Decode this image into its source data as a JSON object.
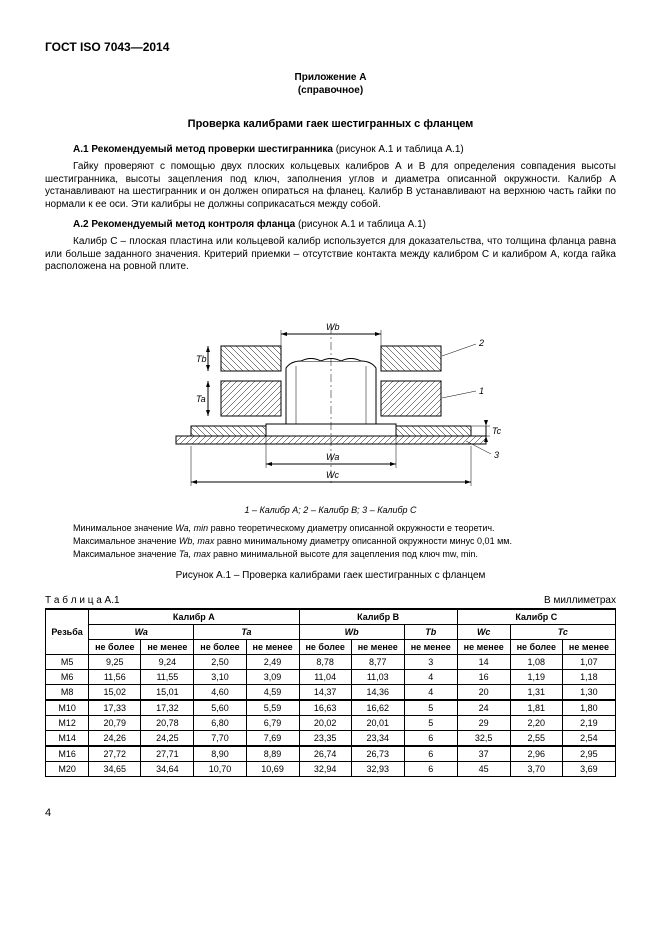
{
  "standard": "ГОСТ ISO 7043—2014",
  "appendix": {
    "title": "Приложение А",
    "subtitle": "(справочное)"
  },
  "section_title": "Проверка калибрами гаек шестигранных с фланцем",
  "a1": {
    "heading": "А.1 Рекомендуемый метод проверки шестигранника",
    "heading_tail": " (рисунок А.1 и таблица А.1)",
    "para": "Гайку проверяют с помощью двух плоских кольцевых калибров А и В для определения совпадения высоты шестигранника, высоты зацепления под ключ, заполнения углов и диаметра описанной окружности. Калибр А устанавливают на шестигранник и он должен опираться на фланец. Калибр В устанавливают на верхнюю часть гайки по нормали к ее оси. Эти калибры не должны соприкасаться между собой."
  },
  "a2": {
    "heading": "А.2 Рекомендуемый метод контроля фланца",
    "heading_tail": " (рисунок А.1 и таблица А.1)",
    "para": "Калибр С – плоская пластина или кольцевой калибр используется для доказательства, что толщина фланца равна или больше заданного значения. Критерий приемки – отсутствие контакта между калибром С и калибром А, когда гайка расположена на ровной плите."
  },
  "figure": {
    "legend": "1 – Калибр А; 2 – Калибр В; 3 – Калибр С",
    "title": "Рисунок А.1 – Проверка калибрами гаек шестигранных с фланцем",
    "labels": {
      "wb": "Wb",
      "wa": "Wa",
      "wc": "Wc",
      "ta": "Ta",
      "tb": "Tb",
      "tc": "Tc",
      "n1": "1",
      "n2": "2",
      "n3": "3"
    }
  },
  "notes": {
    "n1a": "Минимальное значение ",
    "n1b": "Wa, min",
    "n1c": " равно теоретическому диаметру описанной окружности e теоретич.",
    "n2a": "Максимальное значение ",
    "n2b": "Wb, max",
    "n2c": " равно минимальному диаметру описанной окружности минус 0,01 мм.",
    "n3a": "Максимальное значение ",
    "n3b": "Ta, max",
    "n3c": " равно минимальной высоте для зацепления под ключ mw, min."
  },
  "table": {
    "label": "Т а б л и ц а  А.1",
    "units": "В миллиметрах",
    "headers": {
      "thread": "Резьба",
      "gA": "Калибр А",
      "gB": "Калибр В",
      "gC": "Калибр С",
      "wa": "Wa",
      "ta": "Ta",
      "wb": "Wb",
      "tb": "Tb",
      "wc": "Wc",
      "tc": "Tc",
      "max": "не более",
      "min": "не менее"
    },
    "rows": [
      {
        "t": "M5",
        "wa_max": "9,25",
        "wa_min": "9,24",
        "ta_max": "2,50",
        "ta_min": "2,49",
        "wb_max": "8,78",
        "wb_min": "8,77",
        "tb": "3",
        "wc": "14",
        "tc_max": "1,08",
        "tc_min": "1,07"
      },
      {
        "t": "M6",
        "wa_max": "11,56",
        "wa_min": "11,55",
        "ta_max": "3,10",
        "ta_min": "3,09",
        "wb_max": "11,04",
        "wb_min": "11,03",
        "tb": "4",
        "wc": "16",
        "tc_max": "1,19",
        "tc_min": "1,18"
      },
      {
        "t": "M8",
        "wa_max": "15,02",
        "wa_min": "15,01",
        "ta_max": "4,60",
        "ta_min": "4,59",
        "wb_max": "14,37",
        "wb_min": "14,36",
        "tb": "4",
        "wc": "20",
        "tc_max": "1,31",
        "tc_min": "1,30"
      },
      {
        "t": "M10",
        "wa_max": "17,33",
        "wa_min": "17,32",
        "ta_max": "5,60",
        "ta_min": "5,59",
        "wb_max": "16,63",
        "wb_min": "16,62",
        "tb": "5",
        "wc": "24",
        "tc_max": "1,81",
        "tc_min": "1,80"
      },
      {
        "t": "M12",
        "wa_max": "20,79",
        "wa_min": "20,78",
        "ta_max": "6,80",
        "ta_min": "6,79",
        "wb_max": "20,02",
        "wb_min": "20,01",
        "tb": "5",
        "wc": "29",
        "tc_max": "2,20",
        "tc_min": "2,19"
      },
      {
        "t": "M14",
        "wa_max": "24,26",
        "wa_min": "24,25",
        "ta_max": "7,70",
        "ta_min": "7,69",
        "wb_max": "23,35",
        "wb_min": "23,34",
        "tb": "6",
        "wc": "32,5",
        "tc_max": "2,55",
        "tc_min": "2,54"
      },
      {
        "t": "M16",
        "wa_max": "27,72",
        "wa_min": "27,71",
        "ta_max": "8,90",
        "ta_min": "8,89",
        "wb_max": "26,74",
        "wb_min": "26,73",
        "tb": "6",
        "wc": "37",
        "tc_max": "2,96",
        "tc_min": "2,95"
      },
      {
        "t": "M20",
        "wa_max": "34,65",
        "wa_min": "34,64",
        "ta_max": "10,70",
        "ta_min": "10,69",
        "wb_max": "32,94",
        "wb_min": "32,93",
        "tb": "6",
        "wc": "45",
        "tc_max": "3,70",
        "tc_min": "3,69"
      }
    ]
  },
  "page": "4"
}
